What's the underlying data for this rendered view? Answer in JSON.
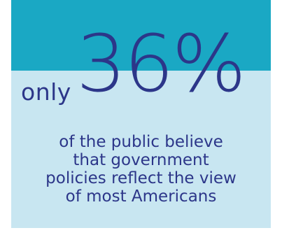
{
  "stat": {
    "prefix": "only",
    "value": "36%"
  },
  "caption": {
    "lines": [
      "of the public believe",
      "that government",
      "policies reflect the view",
      "of most Americans"
    ]
  },
  "colors": {
    "top_band": "#1aa8c4",
    "bottom_band": "#c8e6f1",
    "text": "#2c3689"
  }
}
